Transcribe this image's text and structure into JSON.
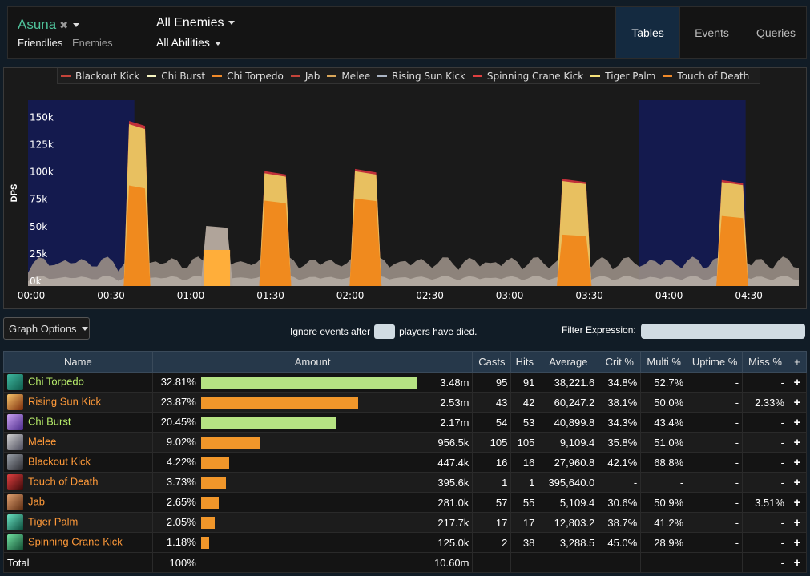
{
  "header": {
    "player": "Asuna",
    "friendlies": "Friendlies",
    "enemies": "Enemies",
    "target": "All Enemies",
    "abilities": "All Abilities",
    "tabs": [
      "Tables",
      "Events",
      "Queries"
    ]
  },
  "colors": {
    "accent": "#4fc29a",
    "green_bar": "#b6e383",
    "orange_bar": "#f0962a",
    "highlight": "#141a4e"
  },
  "legend": [
    {
      "name": "Blackout Kick",
      "color": "#c4443a"
    },
    {
      "name": "Chi Burst",
      "color": "#f5f3c0"
    },
    {
      "name": "Chi Torpedo",
      "color": "#f08a2a"
    },
    {
      "name": "Jab",
      "color": "#c4443a"
    },
    {
      "name": "Melee",
      "color": "#d9a65a"
    },
    {
      "name": "Rising Sun Kick",
      "color": "#aab4c4"
    },
    {
      "name": "Spinning Crane Kick",
      "color": "#e04040"
    },
    {
      "name": "Tiger Palm",
      "color": "#f5e07a"
    },
    {
      "name": "Touch of Death",
      "color": "#f08a2a"
    }
  ],
  "chart_data": {
    "type": "area",
    "ylabel": "DPS",
    "x_ticks": [
      "00:00",
      "00:30",
      "01:00",
      "01:30",
      "02:00",
      "02:30",
      "03:00",
      "03:30",
      "04:00",
      "04:30"
    ],
    "y_ticks": [
      "0k",
      "25k",
      "50k",
      "75k",
      "100k",
      "125k",
      "150k"
    ],
    "ylim": [
      0,
      170000
    ],
    "xlim_seconds": [
      0,
      290
    ],
    "highlight_ranges_seconds": [
      [
        0,
        40
      ],
      [
        230,
        270
      ]
    ],
    "bursts": [
      {
        "start": 36,
        "end": 46,
        "total": 148000,
        "orange": 92000
      },
      {
        "start": 87,
        "end": 99,
        "total": 103000,
        "orange": 78000
      },
      {
        "start": 121,
        "end": 133,
        "total": 105000,
        "orange": 80000
      },
      {
        "start": 199,
        "end": 212,
        "total": 96000,
        "orange": 47000
      },
      {
        "start": 259,
        "end": 271,
        "total": 95000,
        "orange": 64000
      }
    ],
    "small_burst": {
      "start": 65,
      "end": 77,
      "total": 55000,
      "orange": 33000
    },
    "grid": false
  },
  "options": {
    "graph_options": "Graph Options",
    "ignore_before": "Ignore events after",
    "ignore_after": "players have died.",
    "filter_label": "Filter Expression:"
  },
  "table": {
    "headers": [
      "Name",
      "Amount",
      "Casts",
      "Hits",
      "Average",
      "Crit %",
      "Multi %",
      "Uptime %",
      "Miss %",
      "+"
    ],
    "rows": [
      {
        "name": "Chi Torpedo",
        "icon": "chi-torpedo-icon",
        "color": "green",
        "pct": "32.81%",
        "bar": 0.3281,
        "barColor": "#b6e383",
        "amount": "3.48m",
        "casts": "95",
        "hits": "91",
        "avg": "38,221.6",
        "crit": "34.8%",
        "multi": "52.7%",
        "uptime": "-",
        "miss": "-",
        "plus": "+"
      },
      {
        "name": "Rising Sun Kick",
        "icon": "rising-sun-kick-icon",
        "color": "orange",
        "pct": "23.87%",
        "bar": 0.2387,
        "barColor": "#f0962a",
        "amount": "2.53m",
        "casts": "43",
        "hits": "42",
        "avg": "60,247.2",
        "crit": "38.1%",
        "multi": "50.0%",
        "uptime": "-",
        "miss": "2.33%",
        "plus": "+"
      },
      {
        "name": "Chi Burst",
        "icon": "chi-burst-icon",
        "color": "green",
        "pct": "20.45%",
        "bar": 0.2045,
        "barColor": "#b6e383",
        "amount": "2.17m",
        "casts": "54",
        "hits": "53",
        "avg": "40,899.8",
        "crit": "34.3%",
        "multi": "43.4%",
        "uptime": "-",
        "miss": "-",
        "plus": "+"
      },
      {
        "name": "Melee",
        "icon": "melee-icon",
        "color": "orange",
        "pct": "9.02%",
        "bar": 0.0902,
        "barColor": "#f0962a",
        "amount": "956.5k",
        "casts": "105",
        "hits": "105",
        "avg": "9,109.4",
        "crit": "35.8%",
        "multi": "51.0%",
        "uptime": "-",
        "miss": "-",
        "plus": "+"
      },
      {
        "name": "Blackout Kick",
        "icon": "blackout-kick-icon",
        "color": "orange",
        "pct": "4.22%",
        "bar": 0.0422,
        "barColor": "#f0962a",
        "amount": "447.4k",
        "casts": "16",
        "hits": "16",
        "avg": "27,960.8",
        "crit": "42.1%",
        "multi": "68.8%",
        "uptime": "-",
        "miss": "-",
        "plus": "+"
      },
      {
        "name": "Touch of Death",
        "icon": "touch-of-death-icon",
        "color": "orange",
        "pct": "3.73%",
        "bar": 0.0373,
        "barColor": "#f0962a",
        "amount": "395.6k",
        "casts": "1",
        "hits": "1",
        "avg": "395,640.0",
        "crit": "-",
        "multi": "-",
        "uptime": "-",
        "miss": "-",
        "plus": "+"
      },
      {
        "name": "Jab",
        "icon": "jab-icon",
        "color": "orange",
        "pct": "2.65%",
        "bar": 0.0265,
        "barColor": "#f0962a",
        "amount": "281.0k",
        "casts": "57",
        "hits": "55",
        "avg": "5,109.4",
        "crit": "30.6%",
        "multi": "50.9%",
        "uptime": "-",
        "miss": "3.51%",
        "plus": "+"
      },
      {
        "name": "Tiger Palm",
        "icon": "tiger-palm-icon",
        "color": "orange",
        "pct": "2.05%",
        "bar": 0.0205,
        "barColor": "#f0962a",
        "amount": "217.7k",
        "casts": "17",
        "hits": "17",
        "avg": "12,803.2",
        "crit": "38.7%",
        "multi": "41.2%",
        "uptime": "-",
        "miss": "-",
        "plus": "+"
      },
      {
        "name": "Spinning Crane Kick",
        "icon": "spinning-crane-kick-icon",
        "color": "orange",
        "pct": "1.18%",
        "bar": 0.0118,
        "barColor": "#f0962a",
        "amount": "125.0k",
        "casts": "2",
        "hits": "38",
        "avg": "3,288.5",
        "crit": "45.0%",
        "multi": "28.9%",
        "uptime": "-",
        "miss": "-",
        "plus": "+"
      }
    ],
    "total": {
      "name": "Total",
      "pct": "100%",
      "amount": "10.60m",
      "miss": "-",
      "plus": "+"
    }
  }
}
